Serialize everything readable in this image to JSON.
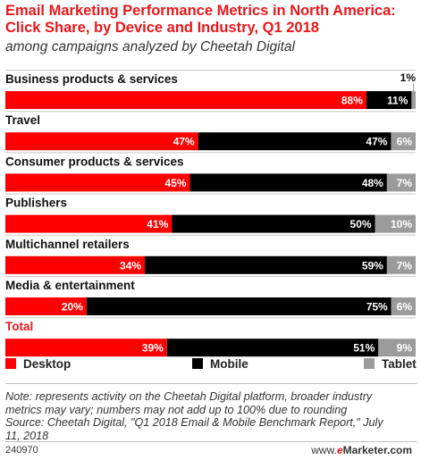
{
  "title": "Email Marketing Performance Metrics in North America: Click Share, by Device and Industry, Q1 2018",
  "subtitle": "among campaigns analyzed by Cheetah Digital",
  "colors": {
    "desktop": "#ff0000",
    "mobile": "#000000",
    "tablet": "#9b9b9b",
    "accent": "#e8171b"
  },
  "chart_data": {
    "type": "bar",
    "orientation": "horizontal",
    "stacked": true,
    "categories": [
      "Business products & services",
      "Travel",
      "Consumer products & services",
      "Publishers",
      "Multichannel retailers",
      "Media & entertainment",
      "Total"
    ],
    "series": [
      {
        "name": "Desktop",
        "values": [
          88,
          47,
          45,
          41,
          34,
          20,
          39
        ],
        "labels": [
          "88%",
          "47%",
          "45%",
          "41%",
          "34%",
          "20%",
          "39%"
        ]
      },
      {
        "name": "Mobile",
        "values": [
          11,
          47,
          48,
          50,
          59,
          75,
          51
        ],
        "labels": [
          "11%",
          "47%",
          "48%",
          "50%",
          "59%",
          "75%",
          "51%"
        ]
      },
      {
        "name": "Tablet",
        "values": [
          1,
          6,
          7,
          10,
          7,
          6,
          9
        ],
        "labels": [
          "1%",
          "6%",
          "7%",
          "10%",
          "7%",
          "6%",
          "9%"
        ]
      }
    ],
    "highlight_category": "Total",
    "legend_position": "bottom"
  },
  "legend": [
    "Desktop",
    "Mobile",
    "Tablet"
  ],
  "note": {
    "line1": "Note: represents activity on the Cheetah Digital platform, broader industry",
    "line2": "metrics may vary; numbers may not add up to 100% due to rounding",
    "line3": "Source: Cheetah Digital, \"Q1 2018 Email & Mobile Benchmark Report,\" July",
    "line4": "11, 2018"
  },
  "footer": {
    "id": "240970",
    "brand_prefix": "www.",
    "brand_e": "e",
    "brand_rest": "Marketer.com"
  }
}
